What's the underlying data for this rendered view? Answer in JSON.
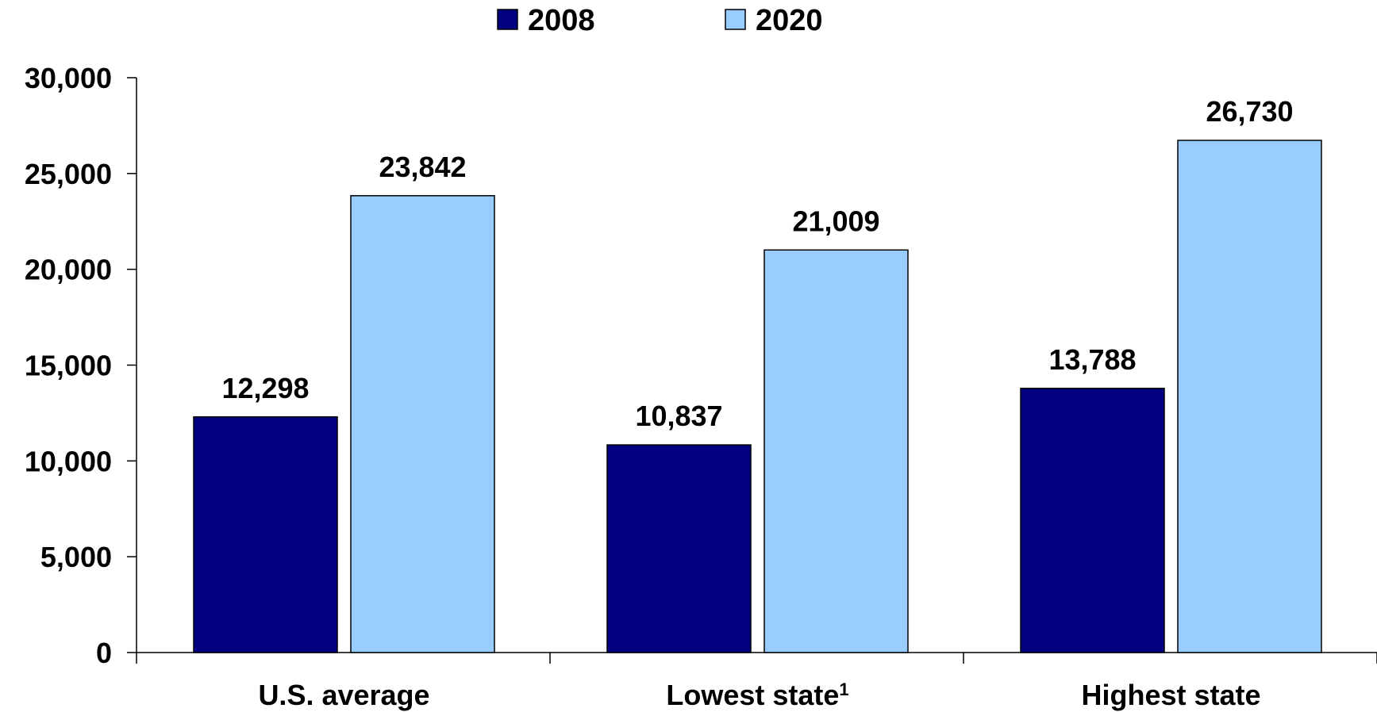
{
  "chart_data": {
    "type": "bar",
    "title": "",
    "xlabel": "",
    "ylabel": "",
    "categories": [
      {
        "label": "U.S. average",
        "footnote": ""
      },
      {
        "label": "Lowest state",
        "footnote": "1"
      },
      {
        "label": "Highest state",
        "footnote": ""
      }
    ],
    "series": [
      {
        "name": "2008",
        "color": "#000080",
        "values": [
          12298,
          10837,
          13788
        ],
        "labels": [
          "12,298",
          "10,837",
          "13,788"
        ]
      },
      {
        "name": "2020",
        "color": "#99ccff",
        "values": [
          23842,
          21009,
          26730
        ],
        "labels": [
          "23,842",
          "21,009",
          "26,730"
        ]
      }
    ],
    "ylim": [
      0,
      30000
    ],
    "yticks": [
      0,
      5000,
      10000,
      15000,
      20000,
      25000,
      30000
    ],
    "ytick_labels": [
      "0",
      "5,000",
      "10,000",
      "15,000",
      "20,000",
      "25,000",
      "30,000"
    ],
    "grid": false,
    "legend_position": "top-center",
    "data_labels": true
  }
}
